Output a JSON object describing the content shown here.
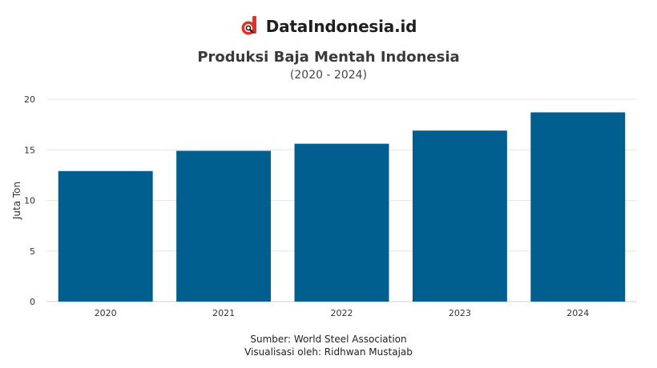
{
  "brand": {
    "name": "DataIndonesia.id",
    "logo_icon": "d-magnifier-logo-icon",
    "accent": "#e0312a"
  },
  "chart_data": {
    "type": "bar",
    "title": "Produksi Baja Mentah Indonesia",
    "subtitle": "(2020 - 2024)",
    "ylabel": "Juta Ton",
    "xlabel": "",
    "categories": [
      "2020",
      "2021",
      "2022",
      "2023",
      "2024"
    ],
    "values": [
      12.9,
      14.9,
      15.6,
      16.9,
      18.7
    ],
    "ylim": [
      0,
      20
    ],
    "yticks": [
      0,
      5,
      10,
      15,
      20
    ],
    "grid": true,
    "bar_color": "#005f8f"
  },
  "footer": {
    "source": "Sumber: World Steel Association",
    "credit": "Visualisasi oleh: Ridhwan Mustajab"
  }
}
